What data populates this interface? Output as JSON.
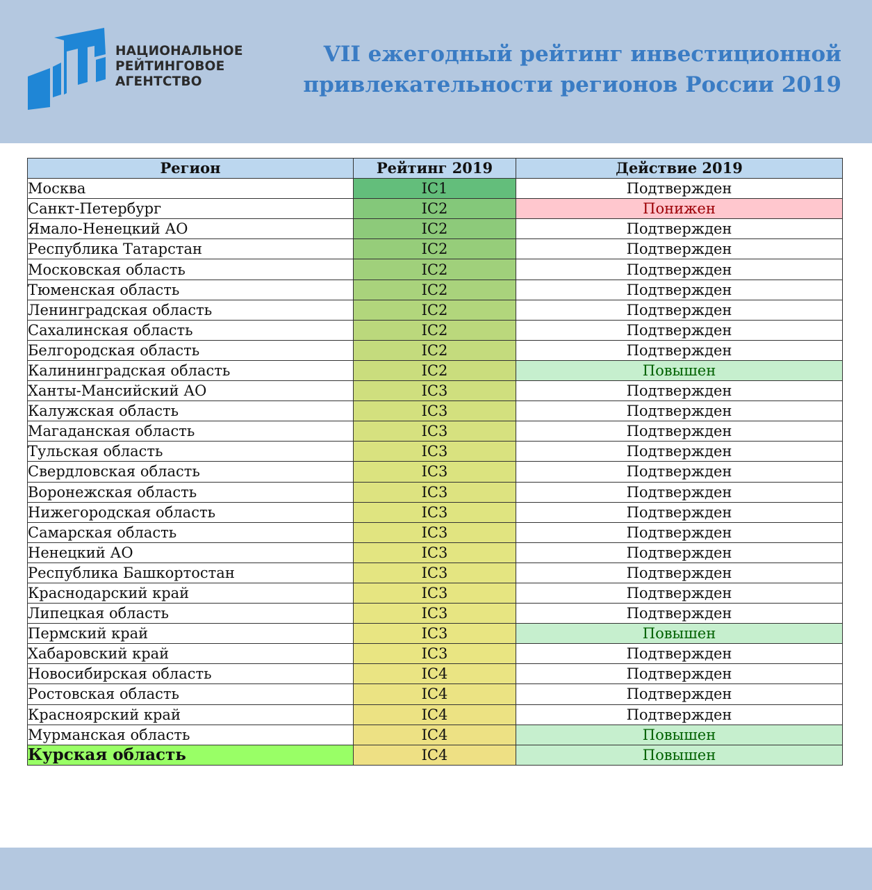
{
  "header": {
    "logo_lines": [
      "НАЦИОНАЛЬНОЕ",
      "РЕЙТИНГОВОЕ",
      "АГЕНТСТВО"
    ],
    "title_lines": [
      "VII ежегодный рейтинг инвестиционной",
      "привлекательности регионов России 2019"
    ],
    "band_color": "#b4c8e0",
    "title_color": "#3a7cc4",
    "logo_color": "#1f86d6"
  },
  "table": {
    "columns": [
      "Регион",
      "Рейтинг 2019",
      "Действие 2019"
    ],
    "rows": [
      {
        "region": "Москва",
        "rating": "IC1",
        "action": "Подтвержден"
      },
      {
        "region": "Санкт-Петербург",
        "rating": "IC2",
        "action": "Понижен",
        "action_status": "down"
      },
      {
        "region": "Ямало-Ненецкий АО",
        "rating": "IC2",
        "action": "Подтвержден"
      },
      {
        "region": "Республика Татарстан",
        "rating": "IC2",
        "action": "Подтвержден"
      },
      {
        "region": "Московская область",
        "rating": "IC2",
        "action": "Подтвержден"
      },
      {
        "region": "Тюменская область",
        "rating": "IC2",
        "action": "Подтвержден"
      },
      {
        "region": "Ленинградская область",
        "rating": "IC2",
        "action": "Подтвержден"
      },
      {
        "region": "Сахалинская область",
        "rating": "IC2",
        "action": "Подтвержден"
      },
      {
        "region": "Белгородская область",
        "rating": "IC2",
        "action": "Подтвержден"
      },
      {
        "region": "Калининградская область",
        "rating": "IC2",
        "action": "Повышен",
        "action_status": "up"
      },
      {
        "region": "Ханты-Мансийский АО",
        "rating": "IC3",
        "action": "Подтвержден"
      },
      {
        "region": "Калужская область",
        "rating": "IC3",
        "action": "Подтвержден"
      },
      {
        "region": "Магаданская область",
        "rating": "IC3",
        "action": "Подтвержден"
      },
      {
        "region": "Тульская область",
        "rating": "IC3",
        "action": "Подтвержден"
      },
      {
        "region": "Свердловская область",
        "rating": "IC3",
        "action": "Подтвержден"
      },
      {
        "region": "Воронежская область",
        "rating": "IC3",
        "action": "Подтвержден"
      },
      {
        "region": "Нижегородская область",
        "rating": "IC3",
        "action": "Подтвержден"
      },
      {
        "region": "Самарская область",
        "rating": "IC3",
        "action": "Подтвержден"
      },
      {
        "region": "Ненецкий АО",
        "rating": "IC3",
        "action": "Подтвержден"
      },
      {
        "region": "Республика Башкортостан",
        "rating": "IC3",
        "action": "Подтвержден"
      },
      {
        "region": "Краснодарский край",
        "rating": "IC3",
        "action": "Подтвержден"
      },
      {
        "region": "Липецкая область",
        "rating": "IC3",
        "action": "Подтвержден"
      },
      {
        "region": "Пермский край",
        "rating": "IC3",
        "action": "Повышен",
        "action_status": "up"
      },
      {
        "region": "Хабаровский край",
        "rating": "IC3",
        "action": "Подтвержден"
      },
      {
        "region": "Новосибирская область",
        "rating": "IC4",
        "action": "Подтвержден"
      },
      {
        "region": "Ростовская область",
        "rating": "IC4",
        "action": "Подтвержден"
      },
      {
        "region": "Красноярский край",
        "rating": "IC4",
        "action": "Подтвержден"
      },
      {
        "region": "Мурманская область",
        "rating": "IC4",
        "action": "Повышен",
        "action_status": "up"
      },
      {
        "region": "Курская область",
        "rating": "IC4",
        "action": "Повышен",
        "action_status": "up",
        "highlight": true
      }
    ],
    "rating_gradient": [
      "#63be7b",
      "#84c87a",
      "#8dca7a",
      "#96cd7a",
      "#a0d07b",
      "#a9d37c",
      "#b2d67c",
      "#bbd87c",
      "#c4db7d",
      "#cadd7d",
      "#cfdf7e",
      "#d3e07e",
      "#d6e17f",
      "#d9e27f",
      "#dbe37f",
      "#dde380",
      "#dfe480",
      "#e1e480",
      "#e3e581",
      "#e4e581",
      "#e6e581",
      "#e7e582",
      "#e8e582",
      "#e9e582",
      "#eae483",
      "#ebe383",
      "#ece283",
      "#ede184",
      "#eee084"
    ],
    "status_colors": {
      "down_bg": "#ffc7ce",
      "down_text": "#9c0006",
      "up_bg": "#c6efce",
      "up_text": "#006100"
    },
    "highlight_color": "#99ff66"
  }
}
